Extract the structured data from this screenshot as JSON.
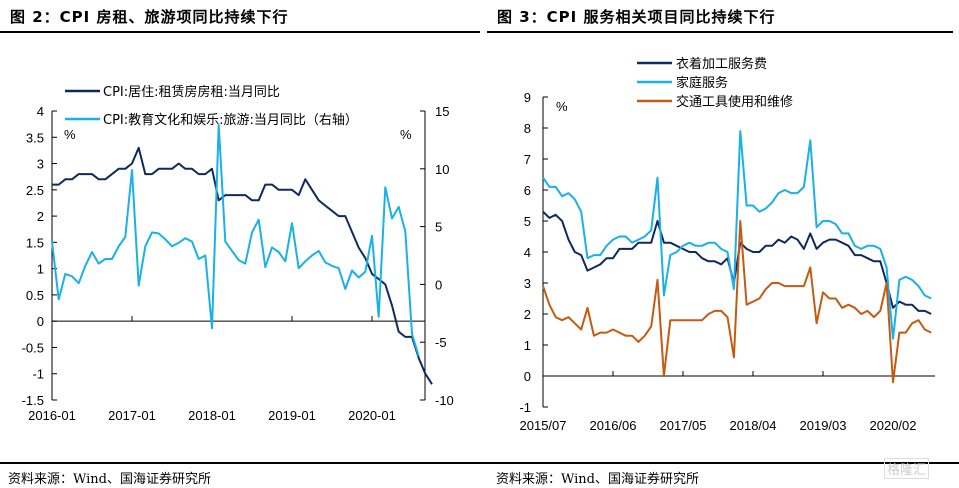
{
  "figure2": {
    "title": "图 2：CPI 房租、旅游项同比持续下行",
    "source": "资料来源：Wind、国海证券研究所"
  },
  "figure3": {
    "title": "图 3：CPI 服务相关项目同比持续下行",
    "source": "资料来源：Wind、国海证券研究所"
  },
  "watermark": "格隆汇",
  "chart_data": [
    {
      "type": "line",
      "title": "CPI 房租、旅游项同比持续下行",
      "ylabel_left": "%",
      "ylabel_right": "%",
      "ylim_left": [
        -1.5,
        4
      ],
      "ylim_right": [
        -10,
        15
      ],
      "yticks_left": [
        "4",
        "3.5",
        "3",
        "2.5",
        "2",
        "1.5",
        "1",
        "0.5",
        "0",
        "-0.5",
        "-1",
        "-1.5"
      ],
      "yticks_right": [
        "15",
        "10",
        "5",
        "0",
        "-5",
        "-10"
      ],
      "xticks": [
        "2016-01",
        "2017-01",
        "2018-01",
        "2019-01",
        "2020-01"
      ],
      "x_start": "2016-01",
      "legend_position": "top-left",
      "series": [
        {
          "name": "CPI:居住:租赁房房租:当月同比",
          "axis": "left",
          "color": "#0f2a5e",
          "values": [
            2.6,
            2.6,
            2.7,
            2.7,
            2.8,
            2.8,
            2.8,
            2.7,
            2.7,
            2.8,
            2.9,
            2.9,
            3.0,
            3.3,
            2.8,
            2.8,
            2.9,
            2.9,
            2.9,
            3.0,
            2.9,
            2.9,
            2.8,
            2.8,
            2.9,
            2.3,
            2.4,
            2.4,
            2.4,
            2.4,
            2.3,
            2.3,
            2.6,
            2.6,
            2.5,
            2.5,
            2.5,
            2.4,
            2.7,
            2.5,
            2.3,
            2.2,
            2.1,
            2.0,
            2.0,
            1.7,
            1.4,
            1.2,
            0.9,
            0.8,
            0.7,
            0.3,
            -0.2,
            -0.3,
            -0.3,
            -0.7,
            -1.0,
            -1.2
          ]
        },
        {
          "name": "CPI:教育文化和娱乐:旅游:当月同比（右轴）",
          "axis": "right",
          "color": "#1ab0e8",
          "values": [
            3.7,
            -1.3,
            0.9,
            0.7,
            0.1,
            1.6,
            2.8,
            1.8,
            2.2,
            2.2,
            3.3,
            4.1,
            9.9,
            -0.1,
            3.3,
            4.5,
            4.4,
            3.9,
            3.3,
            3.6,
            4.0,
            3.7,
            2.2,
            2.5,
            -3.8,
            13.8,
            3.7,
            2.9,
            2.1,
            1.8,
            4.5,
            5.6,
            1.5,
            3.2,
            2.8,
            2.0,
            5.3,
            1.4,
            2.0,
            2.5,
            2.9,
            1.9,
            1.6,
            1.4,
            -0.4,
            1.2,
            0.6,
            1.1,
            4.2,
            -2.8,
            8.4,
            5.7,
            6.7,
            4.6,
            -4.3,
            -6.2
          ]
        }
      ]
    },
    {
      "type": "line",
      "title": "CPI 服务相关项目同比持续下行",
      "ylabel": "%",
      "ylim": [
        -1,
        9
      ],
      "yticks": [
        "9",
        "8",
        "7",
        "6",
        "5",
        "4",
        "3",
        "2",
        "1",
        "0",
        "-1"
      ],
      "xticks": [
        "2015/07",
        "2016/06",
        "2017/05",
        "2018/04",
        "2019/03",
        "2020/02"
      ],
      "x_start": "2015/07",
      "legend_position": "top-center",
      "series": [
        {
          "name": "衣着加工服务费",
          "color": "#0f2a5e",
          "values": [
            5.3,
            5.1,
            5.2,
            5.0,
            4.4,
            4.0,
            3.9,
            3.4,
            3.5,
            3.6,
            3.8,
            3.8,
            4.1,
            4.1,
            4.1,
            4.3,
            4.3,
            4.3,
            5.0,
            4.3,
            4.3,
            4.2,
            4.1,
            4.0,
            4.0,
            3.8,
            3.7,
            3.7,
            3.6,
            3.8,
            3.0,
            4.3,
            4.1,
            4.0,
            4.0,
            4.2,
            4.2,
            4.4,
            4.3,
            4.5,
            4.4,
            4.1,
            4.6,
            4.1,
            4.3,
            4.4,
            4.4,
            4.3,
            4.2,
            3.9,
            3.9,
            3.8,
            3.7,
            3.7,
            3.0,
            2.2,
            2.4,
            2.3,
            2.3,
            2.1,
            2.1,
            2.0
          ]
        },
        {
          "name": "家庭服务",
          "color": "#1ab0e8",
          "values": [
            6.4,
            6.1,
            6.1,
            5.8,
            5.9,
            5.7,
            5.3,
            3.8,
            3.9,
            3.9,
            4.2,
            4.4,
            4.5,
            4.5,
            4.3,
            4.4,
            4.5,
            4.7,
            6.4,
            2.6,
            3.9,
            4.0,
            4.2,
            4.3,
            4.2,
            4.2,
            4.3,
            4.3,
            4.1,
            4.0,
            2.8,
            7.9,
            5.5,
            5.5,
            5.3,
            5.4,
            5.6,
            5.9,
            6.0,
            5.9,
            5.9,
            6.1,
            7.6,
            4.8,
            5.0,
            5.0,
            4.9,
            4.6,
            4.6,
            4.2,
            4.1,
            4.2,
            4.2,
            4.1,
            3.5,
            1.2,
            3.1,
            3.2,
            3.1,
            2.9,
            2.6,
            2.5
          ]
        },
        {
          "name": "交通工具使用和维修",
          "color": "#c55a11",
          "values": [
            2.9,
            2.3,
            1.9,
            1.8,
            1.9,
            1.7,
            1.5,
            2.2,
            1.3,
            1.4,
            1.4,
            1.5,
            1.4,
            1.3,
            1.3,
            1.1,
            1.3,
            1.6,
            3.1,
            0.0,
            1.8,
            1.8,
            1.8,
            1.8,
            1.8,
            1.8,
            2.0,
            2.1,
            2.1,
            1.9,
            0.6,
            5.0,
            2.3,
            2.4,
            2.5,
            2.8,
            3.0,
            3.0,
            2.9,
            2.9,
            2.9,
            2.9,
            3.5,
            1.7,
            2.7,
            2.5,
            2.5,
            2.2,
            2.3,
            2.2,
            2.0,
            2.1,
            1.9,
            2.1,
            3.0,
            -0.2,
            1.4,
            1.4,
            1.7,
            1.8,
            1.5,
            1.4
          ]
        }
      ]
    }
  ]
}
